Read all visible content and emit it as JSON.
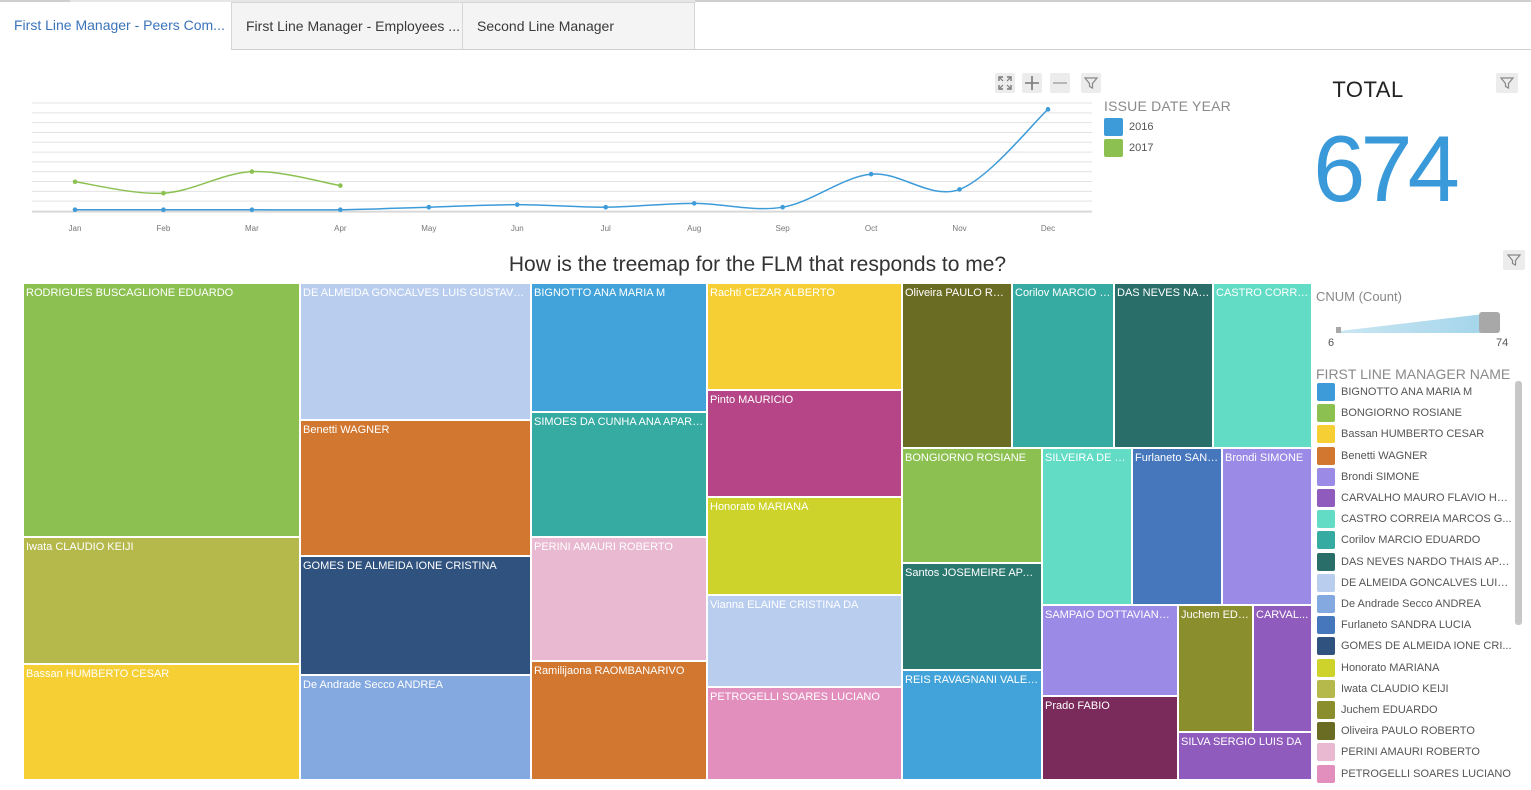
{
  "tabs": [
    {
      "label": "First Line Manager - Peers Com..."
    },
    {
      "label": "First Line Manager - Employees ..."
    },
    {
      "label": "Second Line Manager"
    }
  ],
  "toolbar_icons": [
    "fit-screen-icon",
    "zoom-in-icon",
    "zoom-out-icon",
    "filter-icon"
  ],
  "chart_data": {
    "type": "line",
    "x": [
      "Jan",
      "Feb",
      "Mar",
      "Apr",
      "May",
      "Jun",
      "Jul",
      "Aug",
      "Sep",
      "Oct",
      "Nov",
      "Dec"
    ],
    "series": [
      {
        "name": "2016",
        "color": "#3d9bd9",
        "values": [
          1,
          1,
          1,
          1,
          3,
          5,
          3,
          6,
          3,
          29,
          17,
          80
        ]
      },
      {
        "name": "2017",
        "color": "#8cc152",
        "values": [
          23,
          14,
          31,
          20,
          null,
          null,
          null,
          null,
          null,
          null,
          null,
          null
        ]
      }
    ],
    "ylim": [
      0,
      85
    ],
    "grid": true,
    "legend_title": "ISSUE DATE YEAR",
    "legend_placement": "right"
  },
  "kpi": {
    "title": "TOTAL",
    "value": "674",
    "color": "#3a9ad9"
  },
  "treemap": {
    "title": "How is the treemap for the FLM that responds to me?",
    "cells": [
      {
        "label": "RODRIGUES BUSCAGLIONE EDUARDO",
        "color": "#8cc152"
      },
      {
        "label": "Iwata CLAUDIO KEIJI",
        "color": "#b5b84b"
      },
      {
        "label": "Bassan HUMBERTO CESAR",
        "color": "#f6cf35"
      },
      {
        "label": "DE ALMEIDA GONCALVES LUIS GUSTAVO A",
        "color": "#b9cdef"
      },
      {
        "label": "Benetti WAGNER",
        "color": "#d1772f"
      },
      {
        "label": "GOMES DE ALMEIDA IONE CRISTINA",
        "color": "#30527e"
      },
      {
        "label": "De Andrade Secco ANDREA",
        "color": "#84a9e0"
      },
      {
        "label": "BIGNOTTO ANA MARIA M",
        "color": "#41a3d9"
      },
      {
        "label": "SIMOES DA CUNHA ANA APARE...",
        "color": "#36aba2"
      },
      {
        "label": "PERINI AMAURI ROBERTO",
        "color": "#e8b9d0"
      },
      {
        "label": "Ramilijaona RAOMBANARIVO",
        "color": "#d1772f"
      },
      {
        "label": "Rachti CEZAR ALBERTO",
        "color": "#f6cf35"
      },
      {
        "label": "Pinto MAURICIO",
        "color": "#b64588"
      },
      {
        "label": "Honorato MARIANA",
        "color": "#cdd32b"
      },
      {
        "label": "Vianna ELAINE CRISTINA DA",
        "color": "#b9cdef"
      },
      {
        "label": "PETROGELLI SOARES LUCIANO",
        "color": "#e28fbd"
      },
      {
        "label": "Oliveira PAULO RO...",
        "color": "#6b6c24"
      },
      {
        "label": "Corilov MARCIO E...",
        "color": "#36aba2"
      },
      {
        "label": "DAS NEVES NAR...",
        "color": "#2a6e6a"
      },
      {
        "label": "CASTRO CORRE...",
        "color": "#63dcc5"
      },
      {
        "label": "BONGIORNO ROSIANE",
        "color": "#8cc152"
      },
      {
        "label": "Santos JOSEMEIRE APAR...",
        "color": "#2b786f"
      },
      {
        "label": "REIS RAVAGNANI VALERIA",
        "color": "#41a3d9"
      },
      {
        "label": "SILVEIRA DE F...",
        "color": "#63dcc5"
      },
      {
        "label": "Furlaneto SAND...",
        "color": "#4677bd"
      },
      {
        "label": "Brondi SIMONE",
        "color": "#9b8ae6"
      },
      {
        "label": "SAMPAIO DOTTAVIANO ...",
        "color": "#9b8ae6"
      },
      {
        "label": "Juchem EDU...",
        "color": "#8a8e2c"
      },
      {
        "label": "CARVAL...",
        "color": "#8f5bbd"
      },
      {
        "label": "Prado FABIO",
        "color": "#7b2a5c"
      },
      {
        "label": "SILVA SERGIO LUIS DA",
        "color": "#8f5bbd"
      }
    ]
  },
  "size_legend": {
    "title": "CNUM (Count)",
    "min": "6",
    "max": "74"
  },
  "flm_legend": {
    "title": "FIRST LINE MANAGER NAME",
    "items": [
      {
        "label": "BIGNOTTO ANA MARIA M",
        "color": "#3d9bd9"
      },
      {
        "label": "BONGIORNO ROSIANE",
        "color": "#8cc152"
      },
      {
        "label": "Bassan HUMBERTO CESAR",
        "color": "#f6cf35"
      },
      {
        "label": "Benetti WAGNER",
        "color": "#d1772f"
      },
      {
        "label": "Brondi SIMONE",
        "color": "#9b8ae6"
      },
      {
        "label": "CARVALHO MAURO FLAVIO HE...",
        "color": "#8f5bbd"
      },
      {
        "label": "CASTRO CORREIA MARCOS G...",
        "color": "#63dcc5"
      },
      {
        "label": "Corilov MARCIO EDUARDO",
        "color": "#36aba2"
      },
      {
        "label": "DAS NEVES NARDO THAIS APA...",
        "color": "#2a6e6a"
      },
      {
        "label": "DE ALMEIDA GONCALVES LUIS...",
        "color": "#b9cdef"
      },
      {
        "label": "De Andrade Secco ANDREA",
        "color": "#84a9e0"
      },
      {
        "label": "Furlaneto SANDRA LUCIA",
        "color": "#4677bd"
      },
      {
        "label": "GOMES DE ALMEIDA IONE CRI...",
        "color": "#30527e"
      },
      {
        "label": "Honorato MARIANA",
        "color": "#cdd32b"
      },
      {
        "label": "Iwata CLAUDIO KEIJI",
        "color": "#b5b84b"
      },
      {
        "label": "Juchem EDUARDO",
        "color": "#8a8e2c"
      },
      {
        "label": "Oliveira PAULO ROBERTO",
        "color": "#6b6c24"
      },
      {
        "label": "PERINI AMAURI ROBERTO",
        "color": "#e8b9d0"
      },
      {
        "label": "PETROGELLI SOARES LUCIANO",
        "color": "#e28fbd"
      }
    ]
  }
}
